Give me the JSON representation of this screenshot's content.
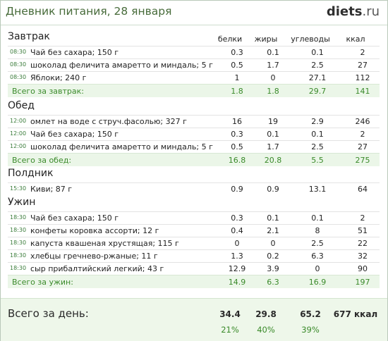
{
  "header": {
    "title": "Дневник питания, 28 января",
    "logo_main": "diets",
    "logo_tld": ".ru"
  },
  "columns": {
    "protein": "белки",
    "fat": "жиры",
    "carbs": "углеводы",
    "kcal": "ккал"
  },
  "sections": [
    {
      "title": "Завтрак",
      "rows": [
        {
          "time": "08:30",
          "name": "Чай без сахара; 150 г",
          "protein": "0.3",
          "fat": "0.1",
          "carbs": "0.1",
          "kcal": "2"
        },
        {
          "time": "08:30",
          "name": "шоколад феличита амаретто и миндаль; 5 г",
          "protein": "0.5",
          "fat": "1.7",
          "carbs": "2.5",
          "kcal": "27"
        },
        {
          "time": "08:30",
          "name": "Яблоки; 240 г",
          "protein": "1",
          "fat": "0",
          "carbs": "27.1",
          "kcal": "112"
        }
      ],
      "total": {
        "label": "Всего за завтрак:",
        "protein": "1.8",
        "fat": "1.8",
        "carbs": "29.7",
        "kcal": "141"
      }
    },
    {
      "title": "Обед",
      "rows": [
        {
          "time": "12:00",
          "name": "омлет на воде с струч.фасолью; 327 г",
          "protein": "16",
          "fat": "19",
          "carbs": "2.9",
          "kcal": "246"
        },
        {
          "time": "12:00",
          "name": "Чай без сахара; 150 г",
          "protein": "0.3",
          "fat": "0.1",
          "carbs": "0.1",
          "kcal": "2"
        },
        {
          "time": "12:00",
          "name": "шоколад феличита амаретто и миндаль; 5 г",
          "protein": "0.5",
          "fat": "1.7",
          "carbs": "2.5",
          "kcal": "27"
        }
      ],
      "total": {
        "label": "Всего за обед:",
        "protein": "16.8",
        "fat": "20.8",
        "carbs": "5.5",
        "kcal": "275"
      }
    },
    {
      "title": "Полдник",
      "rows": [
        {
          "time": "15:30",
          "name": "Киви; 87 г",
          "protein": "0.9",
          "fat": "0.9",
          "carbs": "13.1",
          "kcal": "64"
        }
      ],
      "total": null
    },
    {
      "title": "Ужин",
      "rows": [
        {
          "time": "18:30",
          "name": "Чай без сахара; 150 г",
          "protein": "0.3",
          "fat": "0.1",
          "carbs": "0.1",
          "kcal": "2"
        },
        {
          "time": "18:30",
          "name": "конфеты коровка ассорти; 12 г",
          "protein": "0.4",
          "fat": "2.1",
          "carbs": "8",
          "kcal": "51"
        },
        {
          "time": "18:30",
          "name": "капуста квашеная хрустящая; 115 г",
          "protein": "0",
          "fat": "0",
          "carbs": "2.5",
          "kcal": "22"
        },
        {
          "time": "18:30",
          "name": "хлебцы гречнево-ржаные; 11 г",
          "protein": "1.3",
          "fat": "0.2",
          "carbs": "6.3",
          "kcal": "32"
        },
        {
          "time": "18:30",
          "name": "сыр прибалтийский легкий; 43 г",
          "protein": "12.9",
          "fat": "3.9",
          "carbs": "0",
          "kcal": "90"
        }
      ],
      "total": {
        "label": "Всего за ужин:",
        "protein": "14.9",
        "fat": "6.3",
        "carbs": "16.9",
        "kcal": "197"
      }
    }
  ],
  "day_total": {
    "label": "Всего за день:",
    "protein": "34.4",
    "fat": "29.8",
    "carbs": "65.2",
    "kcal": "677 ккал",
    "protein_pct": "21%",
    "fat_pct": "40%",
    "carbs_pct": "39%"
  }
}
